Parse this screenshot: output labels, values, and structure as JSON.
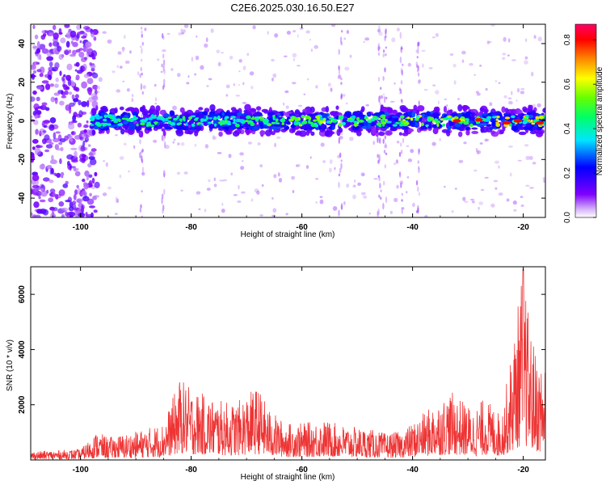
{
  "title": "C2E6.2025.030.16.50.E27",
  "chart_data": [
    {
      "type": "heatmap",
      "xlabel": "Height of straight line (km)",
      "ylabel": "Frequency (Hz)",
      "xlim": [
        -109,
        -16
      ],
      "ylim": [
        -50,
        50
      ],
      "xticks": [
        -100,
        -80,
        -60,
        -40,
        -20
      ],
      "yticks": [
        -40,
        -20,
        0,
        20,
        40
      ],
      "colorbar": {
        "label": "Normalized spectral amplitude",
        "range": [
          0.0,
          0.87
        ],
        "ticks": [
          0.0,
          0.2,
          0.4,
          0.6,
          0.8
        ],
        "colormap": "rainbow (violet-blue-cyan-green-yellow-red-magenta)"
      },
      "features": {
        "signal_band_center_hz": 0,
        "signal_band_halfwidth_hz": 5,
        "signal_start_km": -98,
        "scattered_noise_region_km": [
          -109,
          -97
        ],
        "vertical_streaks_km": [
          -89,
          -85,
          -53,
          -46,
          -45,
          -42,
          -39
        ]
      }
    },
    {
      "type": "line",
      "xlabel": "Height of straight line (km)",
      "ylabel": "SNR (10 * v/v)",
      "xlim": [
        -109,
        -16
      ],
      "ylim": [
        0,
        7000
      ],
      "xticks": [
        -100,
        -80,
        -60,
        -40,
        -20
      ],
      "yticks": [
        2000,
        4000,
        6000
      ],
      "series": [
        {
          "color": "#ee3333",
          "envelope_x": [
            -109,
            -100,
            -97,
            -95,
            -90,
            -85,
            -82,
            -80,
            -75,
            -72,
            -68,
            -66,
            -63,
            -60,
            -56,
            -52,
            -48,
            -45,
            -42,
            -40,
            -36,
            -33,
            -29,
            -27,
            -24,
            -22,
            -20,
            -19,
            -18,
            -17,
            -16
          ],
          "envelope_y": [
            300,
            380,
            1000,
            800,
            1000,
            1300,
            2900,
            2500,
            2100,
            2000,
            2600,
            1800,
            1300,
            1300,
            1400,
            1200,
            1100,
            950,
            1000,
            1300,
            2000,
            2400,
            1800,
            2200,
            1600,
            3900,
            7000,
            5000,
            4000,
            3400,
            3500
          ],
          "peak_value": 6900,
          "peak_x": -20
        }
      ]
    }
  ]
}
